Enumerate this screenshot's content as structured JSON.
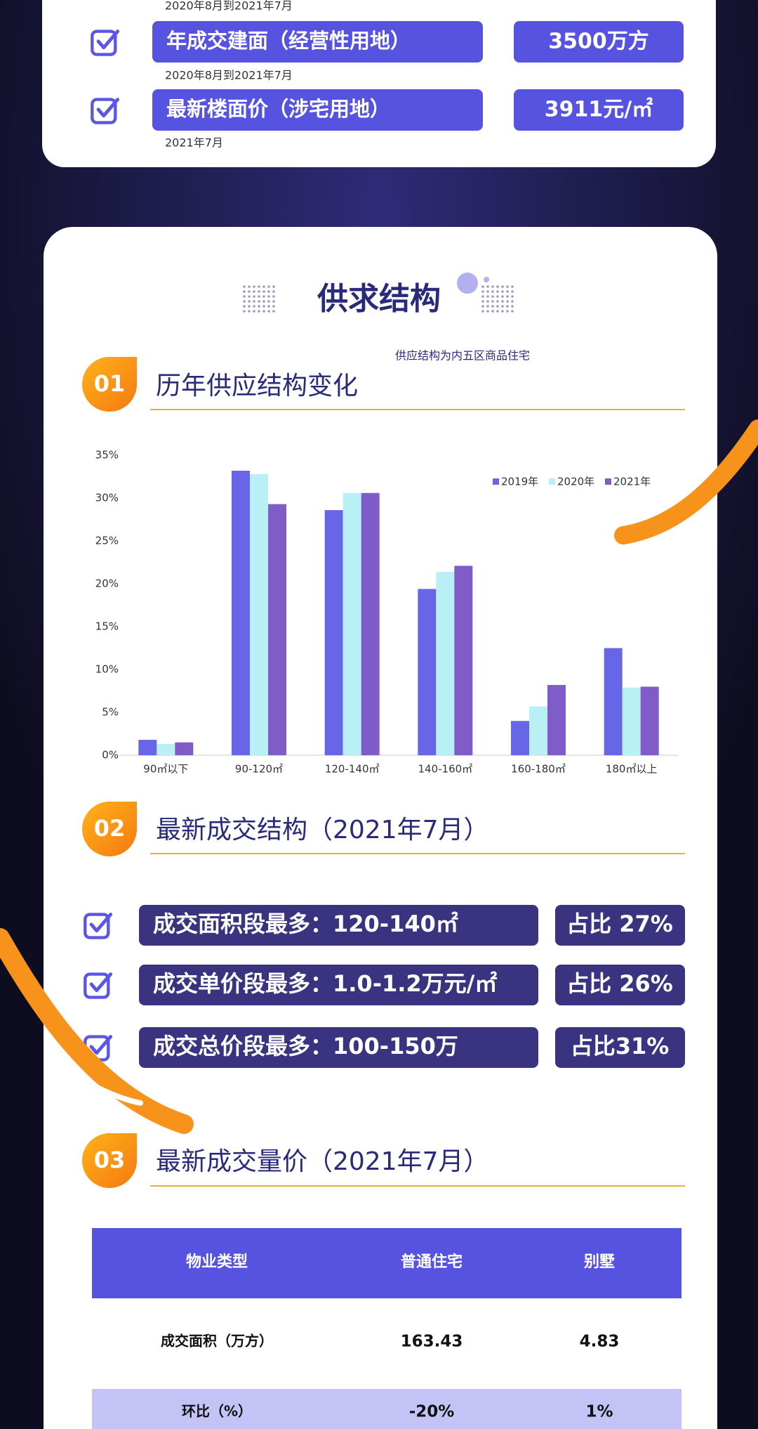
{
  "top_card": {
    "lead_note": "2020年8月到2021年7月",
    "items": [
      {
        "label": "年成交建面（经营性用地）",
        "value": "3500万方",
        "note": "2020年8月到2021年7月"
      },
      {
        "label": "最新楼面价（涉宅用地）",
        "value": "3911元/㎡",
        "note": "2021年7月"
      }
    ]
  },
  "card_title": "供求结构",
  "card_subtitle": "供应结构为内五区商品住宅",
  "sections": [
    {
      "number": "01",
      "title": "历年供应结构变化"
    },
    {
      "number": "02",
      "title": "最新成交结构（2021年7月）"
    },
    {
      "number": "03",
      "title": "最新成交量价（2021年7月）"
    }
  ],
  "chart_data": {
    "type": "bar",
    "categories": [
      "90㎡以下",
      "90-120㎡",
      "120-140㎡",
      "140-160㎡",
      "160-180㎡",
      "180㎡以上"
    ],
    "series": [
      {
        "name": "2019年",
        "color": "#6766e8",
        "values": [
          1.8,
          33.2,
          28.6,
          19.4,
          4.0,
          12.5
        ]
      },
      {
        "name": "2020年",
        "color": "#b8f0f5",
        "values": [
          1.3,
          32.8,
          30.6,
          21.4,
          5.7,
          7.9
        ]
      },
      {
        "name": "2021年",
        "color": "#7f5cc8",
        "values": [
          1.5,
          29.3,
          30.6,
          22.1,
          8.2,
          8.0
        ]
      }
    ],
    "ylim": [
      0,
      35
    ],
    "yticks": [
      {
        "value": 0,
        "label": "0%"
      },
      {
        "value": 5,
        "label": "5%"
      },
      {
        "value": 10,
        "label": "10%"
      },
      {
        "value": 15,
        "label": "15%"
      },
      {
        "value": 20,
        "label": "20%"
      },
      {
        "value": 25,
        "label": "25%"
      },
      {
        "value": 30,
        "label": "30%"
      },
      {
        "value": 35,
        "label": "35%"
      }
    ],
    "grid": false,
    "legend": "top-right"
  },
  "deal_items": [
    {
      "label": "成交面积段最多：120-140㎡",
      "share": "占比 27%"
    },
    {
      "label": "成交单价段最多：1.0-1.2万元/㎡",
      "share": "占比 26%"
    },
    {
      "label": "成交总价段最多：100-150万",
      "share": "占比31%"
    }
  ],
  "table": {
    "header": [
      "物业类型",
      "普通住宅",
      "别墅"
    ],
    "rows": [
      [
        "成交面积（万方）",
        "163.43",
        "4.83"
      ],
      [
        "环比（%）",
        "-20%",
        "1%"
      ]
    ]
  }
}
